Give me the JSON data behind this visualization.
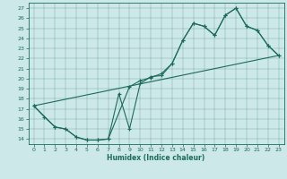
{
  "xlabel": "Humidex (Indice chaleur)",
  "bg_color": "#cce8e8",
  "line_color": "#1a6b5a",
  "xlim": [
    -0.5,
    23.5
  ],
  "ylim": [
    13.5,
    27.5
  ],
  "xticks": [
    0,
    1,
    2,
    3,
    4,
    5,
    6,
    7,
    8,
    9,
    10,
    11,
    12,
    13,
    14,
    15,
    16,
    17,
    18,
    19,
    20,
    21,
    22,
    23
  ],
  "yticks": [
    14,
    15,
    16,
    17,
    18,
    19,
    20,
    21,
    22,
    23,
    24,
    25,
    26,
    27
  ],
  "curve1_x": [
    0,
    1,
    2,
    3,
    4,
    5,
    6,
    7,
    8,
    9,
    10,
    11,
    12,
    13,
    14,
    15,
    16,
    17,
    18,
    19,
    20,
    21,
    22,
    23
  ],
  "curve1_y": [
    17.3,
    16.2,
    15.2,
    15.0,
    14.2,
    13.9,
    13.9,
    14.0,
    18.5,
    15.0,
    19.5,
    20.2,
    20.3,
    21.5,
    23.8,
    25.5,
    25.2,
    24.3,
    26.3,
    27.0,
    25.2,
    24.8,
    23.3,
    22.3
  ],
  "curve2_x": [
    0,
    2,
    3,
    4,
    5,
    6,
    7,
    9,
    10,
    11,
    12,
    13,
    14,
    15,
    16,
    17,
    18,
    19,
    20,
    21,
    22,
    23
  ],
  "curve2_y": [
    17.3,
    15.2,
    15.0,
    14.2,
    13.9,
    13.9,
    14.0,
    19.2,
    19.8,
    20.1,
    20.5,
    21.5,
    23.8,
    25.5,
    25.2,
    24.3,
    26.3,
    27.0,
    25.2,
    24.8,
    23.3,
    22.3
  ],
  "line3_x": [
    0,
    23
  ],
  "line3_y": [
    17.3,
    22.3
  ]
}
